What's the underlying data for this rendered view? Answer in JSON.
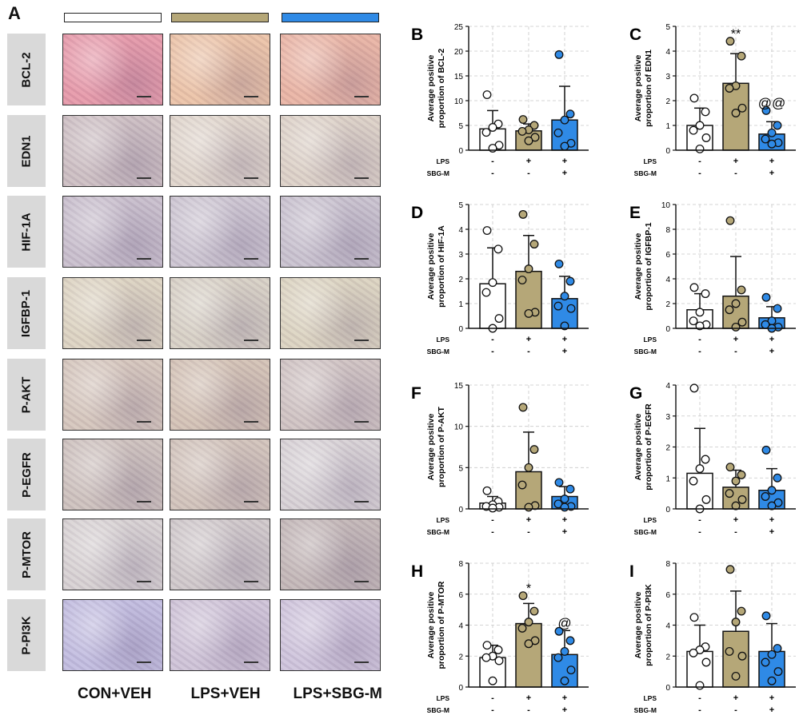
{
  "panel_a": {
    "letter": "A",
    "groups": [
      {
        "label": "CON+VEH",
        "color": "#ffffff"
      },
      {
        "label": "LPS+VEH",
        "color": "#b5a778"
      },
      {
        "label": "LPS+SBG-M",
        "color": "#2f8ae6"
      }
    ],
    "rows": [
      {
        "label": "BCL-2",
        "tones": [
          "#e79aaa",
          "#ecc4a8",
          "#eab5a5"
        ]
      },
      {
        "label": "EDN1",
        "tones": [
          "#cdbfc3",
          "#e0d6cc",
          "#ddd2c8"
        ]
      },
      {
        "label": "HIF-1A",
        "tones": [
          "#c9bfcd",
          "#cdc6d2",
          "#c9c2cf"
        ]
      },
      {
        "label": "IGFBP-1",
        "tones": [
          "#ddd4c2",
          "#d8d1c6",
          "#dcd4c1"
        ]
      },
      {
        "label": "P-AKT",
        "tones": [
          "#d6c7bd",
          "#d4c3b6",
          "#d0c4c3"
        ]
      },
      {
        "label": "P-EGFR",
        "tones": [
          "#cec2be",
          "#d2c4bb",
          "#d8d2d6"
        ]
      },
      {
        "label": "P-MTOR",
        "tones": [
          "#d8d2d3",
          "#d0c9cb",
          "#c4b8b8"
        ]
      },
      {
        "label": "P-PI3K",
        "tones": [
          "#c2bde0",
          "#cfc4d8",
          "#cfc5dc"
        ]
      }
    ]
  },
  "treatment_rows": {
    "lps_label": "LPS",
    "sbg_label": "SBG-M",
    "lps": [
      "-",
      "+",
      "+"
    ],
    "sbg": [
      "-",
      "-",
      "+"
    ]
  },
  "bar_colors": [
    "#ffffff",
    "#b5a778",
    "#2f8ae6"
  ],
  "chart_data": [
    {
      "letter": "B",
      "type": "bar",
      "ylabel": [
        "Average positive",
        "proportion of BCL-2"
      ],
      "ylim": [
        0,
        25
      ],
      "yticks": [
        0,
        5,
        10,
        15,
        20,
        25
      ],
      "means": [
        4.3,
        3.9,
        6.1
      ],
      "sd": [
        3.7,
        1.4,
        6.8
      ],
      "points": [
        [
          11.2,
          5.3,
          4.6,
          3.6,
          1.0,
          0.4
        ],
        [
          6.2,
          5.0,
          4.1,
          3.8,
          2.6,
          1.9
        ],
        [
          19.3,
          7.3,
          6.1,
          3.5,
          1.4,
          0.8
        ]
      ],
      "annotations": [
        "",
        "",
        ""
      ]
    },
    {
      "letter": "C",
      "type": "bar",
      "ylabel": [
        "Average positive",
        "proportion of EDN1"
      ],
      "ylim": [
        0,
        5
      ],
      "yticks": [
        0,
        1,
        2,
        3,
        4,
        5
      ],
      "means": [
        1.0,
        2.7,
        0.65
      ],
      "sd": [
        0.7,
        1.2,
        0.5
      ],
      "points": [
        [
          2.1,
          1.55,
          1.0,
          0.8,
          0.5,
          0.05
        ],
        [
          4.4,
          3.8,
          2.6,
          2.5,
          1.7,
          1.5
        ],
        [
          1.6,
          1.0,
          0.7,
          0.45,
          0.3,
          0.25
        ]
      ],
      "annotations": [
        "",
        "**",
        "@@"
      ]
    },
    {
      "letter": "D",
      "type": "bar",
      "ylabel": [
        "Average positive",
        "proportion of HIF-1A"
      ],
      "ylim": [
        0,
        5
      ],
      "yticks": [
        0,
        1,
        2,
        3,
        4,
        5
      ],
      "means": [
        1.8,
        2.3,
        1.2
      ],
      "sd": [
        1.45,
        1.45,
        0.9
      ],
      "points": [
        [
          3.95,
          3.2,
          1.85,
          1.45,
          0.4,
          0.0
        ],
        [
          4.6,
          3.4,
          2.4,
          1.95,
          0.65,
          0.6
        ],
        [
          2.6,
          1.9,
          1.3,
          0.9,
          0.8,
          0.1
        ]
      ],
      "annotations": [
        "",
        "",
        ""
      ]
    },
    {
      "letter": "E",
      "type": "bar",
      "ylabel": [
        "Average positive",
        "proportion of IGFBP-1"
      ],
      "ylim": [
        0,
        10
      ],
      "yticks": [
        0,
        2,
        4,
        6,
        8,
        10
      ],
      "means": [
        1.5,
        2.6,
        0.85
      ],
      "sd": [
        1.3,
        3.2,
        0.9
      ],
      "points": [
        [
          3.3,
          2.8,
          1.3,
          0.6,
          0.3,
          0.2
        ],
        [
          8.7,
          3.1,
          2.0,
          1.5,
          0.5,
          0.1
        ],
        [
          2.5,
          1.6,
          0.6,
          0.3,
          0.1,
          0.0
        ]
      ],
      "annotations": [
        "",
        "",
        ""
      ]
    },
    {
      "letter": "F",
      "type": "bar",
      "ylabel": [
        "Average positive",
        "proportion of P-AKT"
      ],
      "ylim": [
        0,
        15
      ],
      "yticks": [
        0,
        5,
        10,
        15
      ],
      "means": [
        0.7,
        4.5,
        1.5
      ],
      "sd": [
        0.8,
        4.8,
        1.2
      ],
      "points": [
        [
          2.2,
          0.9,
          0.5,
          0.3,
          0.2,
          0.1
        ],
        [
          12.3,
          7.2,
          5.0,
          2.9,
          0.4,
          0.2
        ],
        [
          3.2,
          2.4,
          1.2,
          0.6,
          0.3,
          0.2
        ]
      ],
      "annotations": [
        "",
        "",
        ""
      ]
    },
    {
      "letter": "G",
      "type": "bar",
      "ylabel": [
        "Average positive",
        "proportion of P-EGFR"
      ],
      "ylim": [
        0,
        4
      ],
      "yticks": [
        0,
        1,
        2,
        3,
        4
      ],
      "means": [
        1.15,
        0.7,
        0.6
      ],
      "sd": [
        1.45,
        0.55,
        0.7
      ],
      "points": [
        [
          3.9,
          1.6,
          1.3,
          0.9,
          0.3,
          0.0
        ],
        [
          1.35,
          1.1,
          0.9,
          0.5,
          0.3,
          0.1
        ],
        [
          1.9,
          1.0,
          0.6,
          0.4,
          0.2,
          0.1
        ]
      ],
      "annotations": [
        "",
        "",
        ""
      ]
    },
    {
      "letter": "H",
      "type": "bar",
      "ylabel": [
        "Average positive",
        "proportion of P-MTOR"
      ],
      "ylim": [
        0,
        8
      ],
      "yticks": [
        0,
        2,
        4,
        6,
        8
      ],
      "means": [
        1.9,
        4.1,
        2.1
      ],
      "sd": [
        0.8,
        1.3,
        1.55
      ],
      "points": [
        [
          2.7,
          2.4,
          2.0,
          1.9,
          1.7,
          0.4
        ],
        [
          5.9,
          4.9,
          4.2,
          3.8,
          3.0,
          2.8
        ],
        [
          3.6,
          3.0,
          2.3,
          1.9,
          1.1,
          0.4
        ]
      ],
      "annotations": [
        "",
        "*",
        "@"
      ]
    },
    {
      "letter": "I",
      "type": "bar",
      "ylabel": [
        "Average positive",
        "proportion of P-PI3K"
      ],
      "ylim": [
        0,
        8
      ],
      "yticks": [
        0,
        2,
        4,
        6,
        8
      ],
      "means": [
        2.3,
        3.6,
        2.3
      ],
      "sd": [
        1.7,
        2.6,
        1.8
      ],
      "points": [
        [
          4.5,
          2.6,
          2.4,
          2.2,
          1.6,
          0.1
        ],
        [
          7.6,
          4.9,
          4.2,
          2.3,
          2.0,
          0.7
        ],
        [
          4.6,
          2.5,
          2.1,
          1.6,
          1.0,
          0.4
        ]
      ],
      "annotations": [
        "",
        "",
        ""
      ]
    }
  ]
}
